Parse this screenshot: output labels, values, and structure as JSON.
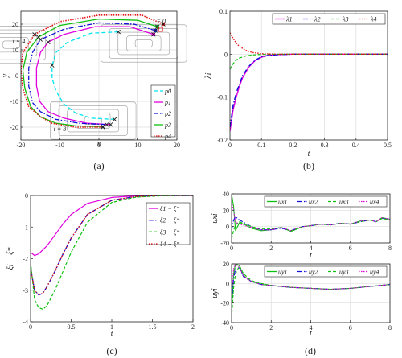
{
  "colors": {
    "c0": "#00e5ee",
    "c1": "#e000e0",
    "c2": "#1010d8",
    "c3": "#10c010",
    "c4": "#e01010",
    "cross": "#222222",
    "spiral": "#999999",
    "grid": "#dddddd"
  },
  "chart_data": [
    {
      "id": "a",
      "type": "line",
      "caption": "(a)",
      "xlabel": "x",
      "ylabel": "y",
      "xlim": [
        -20,
        20
      ],
      "ylim": [
        -25,
        25
      ],
      "xticks": [
        -20,
        -10,
        0,
        10,
        20
      ],
      "yticks": [
        -20,
        -10,
        0,
        10,
        20
      ],
      "legend": [
        "p0",
        "p1",
        "p2",
        "p3",
        "p4"
      ],
      "legend_placement": "bottom-right",
      "annotations": [
        {
          "text": "t = 0",
          "x": 15.5,
          "y": 20.5
        },
        {
          "text": "t = 4",
          "x": -20.5,
          "y": 12.5
        },
        {
          "text": "t = 8",
          "x": -10,
          "y": -21.5
        }
      ],
      "grid": true,
      "series": [
        {
          "name": "p0",
          "x": [
            5,
            -2,
            -8,
            -11,
            -12,
            -12,
            -11,
            -9,
            -6,
            -2,
            4
          ],
          "y": [
            17,
            16.5,
            13,
            9,
            4,
            -1,
            -6,
            -11,
            -14.5,
            -16.5,
            -17
          ]
        },
        {
          "name": "p1",
          "x": [
            14,
            8,
            -1,
            -9,
            -13,
            -15,
            -16,
            -16,
            -15.2,
            -13,
            -9,
            -3,
            3
          ],
          "y": [
            16,
            19,
            19,
            16,
            13,
            9,
            3,
            -4,
            -10,
            -14,
            -16.5,
            -18.5,
            -19
          ]
        },
        {
          "name": "p2",
          "x": [
            14.5,
            9,
            0,
            -9,
            -15,
            -17,
            -18,
            -18,
            -17,
            -15,
            -11,
            -5,
            2
          ],
          "y": [
            17.5,
            20,
            20.5,
            18,
            14,
            9,
            3,
            -4,
            -10.5,
            -14,
            -17,
            -18.5,
            -19
          ]
        },
        {
          "name": "p3",
          "x": [
            15,
            10,
            0,
            -10,
            -15.5,
            -18.5,
            -19.5,
            -19,
            -17.5,
            -15,
            -11,
            -6,
            1
          ],
          "y": [
            19,
            21.5,
            22,
            19.5,
            15,
            9,
            2,
            -5,
            -12,
            -16,
            -18.5,
            -19.5,
            -19.8
          ]
        },
        {
          "name": "p4",
          "x": [
            16.5,
            11,
            0,
            -10,
            -16.5,
            -19.5,
            -20,
            -19.5,
            -18,
            -15,
            -12,
            -6,
            1
          ],
          "y": [
            20,
            23.5,
            23.5,
            21,
            16,
            9,
            2,
            -5,
            -12,
            -16,
            -18.5,
            -20,
            -20
          ]
        }
      ]
    },
    {
      "id": "b",
      "type": "line",
      "caption": "(b)",
      "xlabel": "t",
      "ylabel": "λi",
      "xlim": [
        0,
        0.5
      ],
      "ylim": [
        -0.2,
        0.1
      ],
      "xticks": [
        0,
        0.1,
        0.2,
        0.3,
        0.4,
        0.5
      ],
      "yticks": [
        -0.2,
        -0.1,
        0,
        0.1
      ],
      "legend": [
        "λ1",
        "λ2",
        "λ3",
        "λ4"
      ],
      "legend_placement": "top-right",
      "grid": true,
      "series": [
        {
          "name": "λ1",
          "x": [
            0,
            0.01,
            0.02,
            0.03,
            0.04,
            0.06,
            0.08,
            0.1,
            0.12,
            0.15,
            0.2,
            0.5
          ],
          "y": [
            -0.18,
            -0.13,
            -0.1,
            -0.075,
            -0.055,
            -0.03,
            -0.015,
            -0.007,
            -0.003,
            -0.001,
            0,
            0
          ]
        },
        {
          "name": "λ2",
          "x": [
            0,
            0.01,
            0.02,
            0.03,
            0.04,
            0.06,
            0.08,
            0.1,
            0.12,
            0.15,
            0.2,
            0.5
          ],
          "y": [
            -0.17,
            -0.12,
            -0.09,
            -0.07,
            -0.05,
            -0.028,
            -0.014,
            -0.006,
            -0.003,
            -0.001,
            0,
            0
          ]
        },
        {
          "name": "λ3",
          "x": [
            0,
            0.01,
            0.02,
            0.03,
            0.05,
            0.07,
            0.1,
            0.15,
            0.5
          ],
          "y": [
            -0.035,
            -0.022,
            -0.014,
            -0.009,
            -0.004,
            -0.002,
            -0.0005,
            0,
            0
          ]
        },
        {
          "name": "λ4",
          "x": [
            0,
            0.01,
            0.02,
            0.03,
            0.05,
            0.07,
            0.1,
            0.15,
            0.5
          ],
          "y": [
            0.05,
            0.037,
            0.026,
            0.018,
            0.009,
            0.004,
            0.001,
            0,
            0
          ]
        }
      ]
    },
    {
      "id": "c",
      "type": "line",
      "caption": "(c)",
      "xlabel": "t",
      "ylabel": "ξi − ξ*",
      "xlim": [
        0,
        2
      ],
      "ylim": [
        -4,
        0
      ],
      "xticks": [
        0,
        0.5,
        1,
        1.5,
        2
      ],
      "yticks": [
        -4,
        -3,
        -2,
        -1,
        0
      ],
      "legend": [
        "ξ1 − ξ*",
        "ξ2 − ξ*",
        "ξ3 − ξ*",
        "ξ4 − ξ*"
      ],
      "legend_placement": "right",
      "grid": false,
      "series": [
        {
          "name": "ξ1 − ξ*",
          "x": [
            0,
            0.05,
            0.1,
            0.2,
            0.3,
            0.4,
            0.5,
            0.7,
            1,
            1.3,
            1.6,
            2
          ],
          "y": [
            -1.8,
            -1.9,
            -1.85,
            -1.6,
            -1.25,
            -0.9,
            -0.6,
            -0.25,
            -0.06,
            -0.01,
            0,
            0
          ]
        },
        {
          "name": "ξ2 − ξ*",
          "x": [
            0,
            0.05,
            0.1,
            0.15,
            0.2,
            0.3,
            0.4,
            0.5,
            0.7,
            1,
            1.3,
            1.6,
            2
          ],
          "y": [
            -2.3,
            -3.0,
            -3.15,
            -3.1,
            -2.9,
            -2.4,
            -1.85,
            -1.35,
            -0.6,
            -0.15,
            -0.03,
            0,
            0
          ]
        },
        {
          "name": "ξ3 − ξ*",
          "x": [
            0,
            0.05,
            0.1,
            0.15,
            0.2,
            0.3,
            0.4,
            0.5,
            0.7,
            1,
            1.3,
            1.6,
            2
          ],
          "y": [
            -2.1,
            -3.3,
            -3.55,
            -3.6,
            -3.5,
            -3.0,
            -2.4,
            -1.8,
            -0.85,
            -0.22,
            -0.05,
            -0.01,
            0
          ]
        },
        {
          "name": "ξ4 − ξ*",
          "x": [
            0,
            0.05,
            0.1,
            0.15,
            0.2,
            0.3,
            0.4,
            0.5,
            0.7,
            1,
            1.3,
            1.6,
            2
          ],
          "y": [
            -2.3,
            -3.0,
            -3.15,
            -3.1,
            -2.9,
            -2.4,
            -1.85,
            -1.35,
            -0.6,
            -0.15,
            -0.03,
            0,
            0
          ]
        }
      ]
    },
    {
      "id": "d1",
      "type": "line",
      "caption": "(d)",
      "xlabel": "t",
      "ylabel": "uxi",
      "xlim": [
        0,
        8
      ],
      "ylim": [
        -20,
        40
      ],
      "xticks": [
        0,
        2,
        4,
        6,
        8
      ],
      "yticks": [
        -20,
        0,
        20,
        40
      ],
      "legend": [
        "ux1",
        "ux2",
        "ux3",
        "ux4"
      ],
      "legend_placement": "top",
      "grid": true,
      "series": [
        {
          "name": "ux1",
          "x": [
            0,
            0.1,
            0.2,
            0.4,
            0.7,
            1,
            1.5,
            2,
            2.5,
            3,
            3.3,
            3.6,
            4,
            4.5,
            5,
            5.5,
            6,
            6.5,
            7,
            7.3,
            7.6,
            8
          ],
          "y": [
            40,
            25,
            -5,
            5,
            2,
            -2,
            -5,
            -4,
            -1,
            -6,
            -3,
            0,
            1,
            3,
            2,
            4,
            3,
            7,
            8,
            6,
            11,
            9
          ]
        },
        {
          "name": "ux2",
          "x": [
            0,
            0.1,
            0.2,
            0.4,
            0.7,
            1,
            1.5,
            2,
            2.5,
            3,
            3.3,
            3.6,
            4,
            4.5,
            5,
            5.5,
            6,
            6.5,
            7,
            7.3,
            7.6,
            8
          ],
          "y": [
            -5,
            8,
            12,
            8,
            4,
            0,
            -4,
            -4,
            -2,
            -5,
            -2,
            0,
            1,
            3,
            2,
            4,
            3,
            6,
            8,
            6,
            10,
            9
          ]
        },
        {
          "name": "ux3",
          "x": [
            0,
            0.1,
            0.2,
            0.4,
            0.7,
            1,
            1.5,
            2,
            2.5,
            3,
            3.3,
            3.6,
            4,
            4.5,
            5,
            5.5,
            6,
            6.5,
            7,
            7.3,
            7.6,
            8
          ],
          "y": [
            -15,
            -5,
            2,
            6,
            3,
            0,
            -3,
            -3,
            -1,
            -5,
            -2,
            0,
            1,
            3,
            2,
            4,
            3,
            6,
            8,
            6,
            10,
            8
          ]
        },
        {
          "name": "ux4",
          "x": [
            0,
            0.1,
            0.2,
            0.4,
            0.7,
            1,
            1.5,
            2,
            2.5,
            3,
            3.3,
            3.6,
            4,
            4.5,
            5,
            5.5,
            6,
            6.5,
            7,
            7.3,
            7.6,
            8
          ],
          "y": [
            30,
            20,
            5,
            3,
            1,
            -1,
            -4,
            -4,
            -1,
            -5,
            -2,
            0,
            1,
            3,
            2,
            4,
            3,
            7,
            8,
            6,
            11,
            9
          ]
        }
      ]
    },
    {
      "id": "d2",
      "type": "line",
      "xlabel": "t",
      "ylabel": "uyi",
      "xlim": [
        0,
        8
      ],
      "ylim": [
        -40,
        20
      ],
      "xticks": [
        0,
        2,
        4,
        6,
        8
      ],
      "yticks": [
        -40,
        -20,
        0,
        20
      ],
      "legend": [
        "uy1",
        "uy2",
        "uy3",
        "uy4"
      ],
      "legend_placement": "top",
      "grid": true,
      "series": [
        {
          "name": "uy1",
          "x": [
            0,
            0.1,
            0.2,
            0.4,
            0.6,
            1,
            1.5,
            2,
            3,
            4,
            5,
            6,
            7,
            8
          ],
          "y": [
            -30,
            10,
            20,
            18,
            8,
            2,
            -1,
            -2,
            -4,
            -5,
            -6,
            -5,
            -3,
            -1
          ]
        },
        {
          "name": "uy2",
          "x": [
            0,
            0.1,
            0.2,
            0.4,
            0.6,
            1,
            1.5,
            2,
            3,
            4,
            5,
            6,
            7,
            8
          ],
          "y": [
            -20,
            5,
            15,
            16,
            7,
            2,
            -1,
            -2,
            -4,
            -5,
            -6,
            -5,
            -3,
            -1
          ]
        },
        {
          "name": "uy3",
          "x": [
            0,
            0.1,
            0.2,
            0.4,
            0.6,
            1,
            1.5,
            2,
            3,
            4,
            5,
            6,
            7,
            8
          ],
          "y": [
            -35,
            -5,
            10,
            18,
            10,
            3,
            0,
            -2,
            -4,
            -5,
            -6,
            -5,
            -3,
            -1
          ]
        },
        {
          "name": "uy4",
          "x": [
            0,
            0.1,
            0.2,
            0.4,
            0.6,
            1,
            1.5,
            2,
            3,
            4,
            5,
            6,
            7,
            8
          ],
          "y": [
            -10,
            15,
            20,
            16,
            8,
            2,
            -1,
            -2,
            -4,
            -5,
            -6,
            -5,
            -3,
            -1
          ]
        }
      ]
    }
  ]
}
